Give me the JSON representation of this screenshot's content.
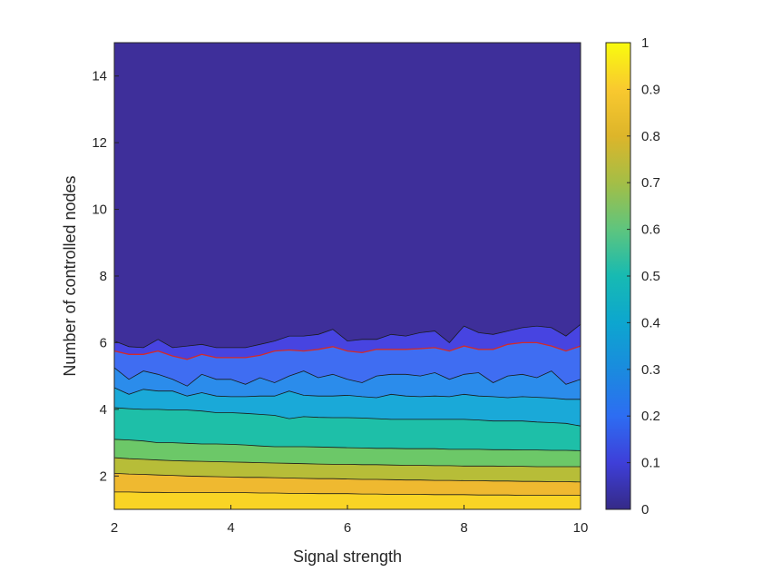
{
  "chart_data": {
    "type": "contour",
    "title": "",
    "xlabel": "Signal strength",
    "ylabel": "Number of controlled nodes",
    "xlim": [
      2,
      10
    ],
    "ylim": [
      1,
      15
    ],
    "xticks": [
      2,
      4,
      6,
      8,
      10
    ],
    "yticks": [
      2,
      4,
      6,
      8,
      10,
      12,
      14
    ],
    "colorbar": {
      "range": [
        0,
        1
      ],
      "ticks": [
        0,
        0.1,
        0.2,
        0.3,
        0.4,
        0.5,
        0.6,
        0.7,
        0.8,
        0.9,
        1
      ],
      "tick_labels": [
        "0",
        "0.1",
        "0.2",
        "0.3",
        "0.4",
        "0.5",
        "0.6",
        "0.7",
        "0.8",
        "0.9",
        "1"
      ],
      "colormap": "parula"
    },
    "levels": [
      0.1,
      0.2,
      0.3,
      0.4,
      0.5,
      0.6,
      0.7,
      0.8,
      0.9
    ],
    "highlight_level": {
      "value": 0.1,
      "color": "#d22a2a"
    },
    "band_colors": [
      "#3e2f9a",
      "#4744e1",
      "#3f6df2",
      "#2b8ceb",
      "#1aa9d8",
      "#1ebfa8",
      "#6cc868",
      "#b7bd38",
      "#efb930",
      "#f9d425"
    ],
    "x": [
      2,
      2.25,
      2.5,
      2.75,
      3,
      3.25,
      3.5,
      3.75,
      4,
      4.25,
      4.5,
      4.75,
      5,
      5.25,
      5.5,
      5.75,
      6,
      6.25,
      6.5,
      6.75,
      7,
      7.25,
      7.5,
      7.75,
      8,
      8.25,
      8.5,
      8.75,
      9,
      9.25,
      9.5,
      9.75,
      10
    ],
    "contours": [
      {
        "level": 0.1,
        "y": [
          5.75,
          5.65,
          5.65,
          5.75,
          5.6,
          5.5,
          5.65,
          5.55,
          5.55,
          5.55,
          5.62,
          5.75,
          5.78,
          5.75,
          5.8,
          5.88,
          5.75,
          5.7,
          5.8,
          5.8,
          5.8,
          5.82,
          5.85,
          5.75,
          5.9,
          5.8,
          5.8,
          5.95,
          6.0,
          6.0,
          5.9,
          5.75,
          5.9
        ]
      },
      {
        "level": 0.2,
        "y": [
          5.25,
          4.9,
          5.15,
          5.05,
          4.9,
          4.7,
          5.05,
          4.9,
          4.9,
          4.75,
          4.95,
          4.8,
          5.0,
          5.15,
          4.95,
          5.05,
          4.9,
          4.8,
          5.0,
          5.05,
          5.05,
          5.0,
          5.1,
          4.9,
          5.05,
          5.1,
          4.8,
          5.0,
          5.05,
          4.95,
          5.15,
          4.75,
          4.9
        ]
      },
      {
        "level": 0.3,
        "y": [
          4.65,
          4.45,
          4.6,
          4.55,
          4.55,
          4.4,
          4.5,
          4.4,
          4.38,
          4.38,
          4.4,
          4.4,
          4.55,
          4.42,
          4.4,
          4.4,
          4.42,
          4.38,
          4.35,
          4.45,
          4.4,
          4.38,
          4.4,
          4.38,
          4.45,
          4.4,
          4.38,
          4.35,
          4.38,
          4.36,
          4.34,
          4.3,
          4.3
        ]
      },
      {
        "level": 0.4,
        "y": [
          4.05,
          4.02,
          4.0,
          4.0,
          3.98,
          3.98,
          3.95,
          3.9,
          3.9,
          3.88,
          3.85,
          3.82,
          3.72,
          3.78,
          3.76,
          3.75,
          3.75,
          3.74,
          3.72,
          3.7,
          3.7,
          3.7,
          3.7,
          3.7,
          3.7,
          3.68,
          3.65,
          3.65,
          3.65,
          3.62,
          3.6,
          3.58,
          3.5
        ]
      },
      {
        "level": 0.5,
        "y": [
          3.1,
          3.08,
          3.05,
          3.0,
          3.0,
          2.98,
          2.96,
          2.96,
          2.95,
          2.93,
          2.9,
          2.88,
          2.88,
          2.88,
          2.87,
          2.86,
          2.85,
          2.84,
          2.83,
          2.83,
          2.82,
          2.82,
          2.82,
          2.8,
          2.8,
          2.8,
          2.79,
          2.79,
          2.78,
          2.78,
          2.77,
          2.77,
          2.76
        ]
      },
      {
        "level": 0.6,
        "y": [
          2.55,
          2.52,
          2.5,
          2.48,
          2.46,
          2.45,
          2.44,
          2.43,
          2.42,
          2.41,
          2.4,
          2.39,
          2.38,
          2.37,
          2.36,
          2.35,
          2.35,
          2.34,
          2.34,
          2.33,
          2.32,
          2.32,
          2.31,
          2.31,
          2.3,
          2.3,
          2.3,
          2.29,
          2.29,
          2.28,
          2.28,
          2.28,
          2.28
        ]
      },
      {
        "level": 0.7,
        "y": [
          2.08,
          2.06,
          2.05,
          2.03,
          2.02,
          2.0,
          1.99,
          1.98,
          1.97,
          1.96,
          1.96,
          1.95,
          1.94,
          1.93,
          1.92,
          1.92,
          1.91,
          1.9,
          1.9,
          1.89,
          1.88,
          1.88,
          1.87,
          1.87,
          1.86,
          1.86,
          1.85,
          1.85,
          1.84,
          1.84,
          1.83,
          1.83,
          1.82
        ]
      },
      {
        "level": 0.8,
        "y": [
          1.52,
          1.52,
          1.51,
          1.51,
          1.5,
          1.5,
          1.5,
          1.5,
          1.5,
          1.5,
          1.49,
          1.49,
          1.48,
          1.48,
          1.47,
          1.47,
          1.47,
          1.46,
          1.46,
          1.45,
          1.45,
          1.45,
          1.44,
          1.44,
          1.44,
          1.43,
          1.43,
          1.43,
          1.42,
          1.42,
          1.42,
          1.42,
          1.42
        ]
      }
    ],
    "upper_boundary": {
      "y": [
        6.05,
        5.88,
        5.85,
        6.1,
        5.85,
        5.9,
        5.95,
        5.85,
        5.85,
        5.85,
        5.95,
        6.05,
        6.2,
        6.2,
        6.25,
        6.4,
        6.05,
        6.1,
        6.1,
        6.25,
        6.2,
        6.3,
        6.35,
        6.0,
        6.5,
        6.3,
        6.25,
        6.35,
        6.45,
        6.5,
        6.45,
        6.2,
        6.55
      ]
    }
  }
}
